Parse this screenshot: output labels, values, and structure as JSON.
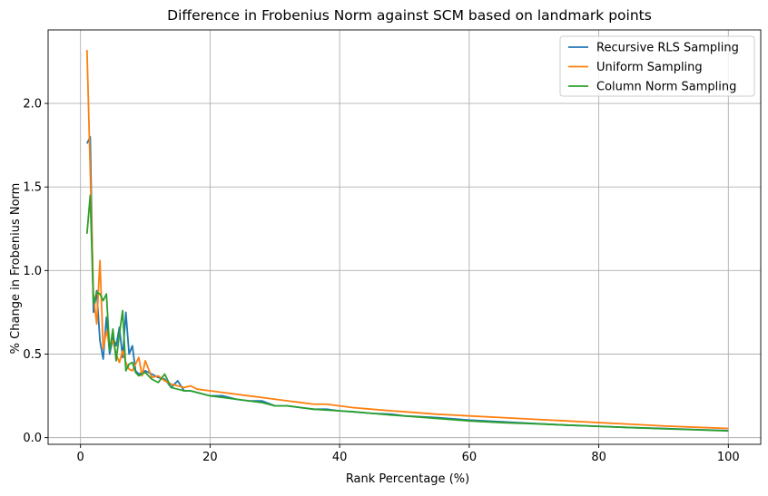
{
  "chart_data": {
    "type": "line",
    "title": "Difference in Frobenius Norm against SCM based on landmark points",
    "xlabel": "Rank Percentage (%)",
    "ylabel": "% Change in Frobenius Norm",
    "xlim": [
      -5,
      105
    ],
    "ylim": [
      -0.04,
      2.44
    ],
    "xticks": [
      0,
      20,
      40,
      60,
      80,
      100
    ],
    "yticks": [
      0.0,
      0.5,
      1.0,
      1.5,
      2.0
    ],
    "xtick_labels": [
      "0",
      "20",
      "40",
      "60",
      "80",
      "100"
    ],
    "ytick_labels": [
      "0.0",
      "0.5",
      "1.0",
      "1.5",
      "2.0"
    ],
    "grid": true,
    "legend_position": "top-right",
    "series": [
      {
        "name": "Recursive RLS Sampling",
        "color": "#1f77b4",
        "points": [
          [
            1,
            1.76
          ],
          [
            1.5,
            1.8
          ],
          [
            2,
            0.75
          ],
          [
            2.5,
            0.88
          ],
          [
            3,
            0.58
          ],
          [
            3.5,
            0.47
          ],
          [
            4,
            0.72
          ],
          [
            4.5,
            0.5
          ],
          [
            5,
            0.6
          ],
          [
            5.5,
            0.55
          ],
          [
            6,
            0.66
          ],
          [
            6.5,
            0.48
          ],
          [
            7,
            0.75
          ],
          [
            7.5,
            0.5
          ],
          [
            8,
            0.55
          ],
          [
            8.5,
            0.4
          ],
          [
            9,
            0.38
          ],
          [
            10,
            0.4
          ],
          [
            11,
            0.38
          ],
          [
            12,
            0.36
          ],
          [
            13,
            0.35
          ],
          [
            14,
            0.3
          ],
          [
            15,
            0.34
          ],
          [
            16,
            0.28
          ],
          [
            17,
            0.28
          ],
          [
            18,
            0.27
          ],
          [
            20,
            0.25
          ],
          [
            22,
            0.25
          ],
          [
            24,
            0.23
          ],
          [
            26,
            0.22
          ],
          [
            28,
            0.22
          ],
          [
            30,
            0.19
          ],
          [
            32,
            0.19
          ],
          [
            34,
            0.18
          ],
          [
            36,
            0.17
          ],
          [
            38,
            0.17
          ],
          [
            40,
            0.16
          ],
          [
            42,
            0.155
          ],
          [
            45,
            0.145
          ],
          [
            48,
            0.14
          ],
          [
            50,
            0.13
          ],
          [
            55,
            0.12
          ],
          [
            60,
            0.105
          ],
          [
            65,
            0.095
          ],
          [
            70,
            0.085
          ],
          [
            75,
            0.075
          ],
          [
            80,
            0.068
          ],
          [
            85,
            0.06
          ],
          [
            90,
            0.055
          ],
          [
            95,
            0.048
          ],
          [
            100,
            0.042
          ]
        ]
      },
      {
        "name": "Uniform Sampling",
        "color": "#ff7f0e",
        "points": [
          [
            1,
            2.32
          ],
          [
            1.5,
            1.6
          ],
          [
            2,
            0.85
          ],
          [
            2.5,
            0.68
          ],
          [
            3,
            1.06
          ],
          [
            3.5,
            0.53
          ],
          [
            4,
            0.64
          ],
          [
            4.5,
            0.55
          ],
          [
            5,
            0.58
          ],
          [
            5.5,
            0.5
          ],
          [
            6,
            0.45
          ],
          [
            6.5,
            0.52
          ],
          [
            7,
            0.45
          ],
          [
            7.5,
            0.41
          ],
          [
            8,
            0.4
          ],
          [
            9,
            0.48
          ],
          [
            9.5,
            0.37
          ],
          [
            10,
            0.46
          ],
          [
            11,
            0.36
          ],
          [
            12,
            0.37
          ],
          [
            13,
            0.34
          ],
          [
            14,
            0.32
          ],
          [
            15,
            0.31
          ],
          [
            16,
            0.3
          ],
          [
            17,
            0.31
          ],
          [
            18,
            0.29
          ],
          [
            20,
            0.28
          ],
          [
            22,
            0.27
          ],
          [
            24,
            0.26
          ],
          [
            26,
            0.25
          ],
          [
            28,
            0.24
          ],
          [
            30,
            0.23
          ],
          [
            32,
            0.22
          ],
          [
            34,
            0.21
          ],
          [
            36,
            0.2
          ],
          [
            38,
            0.2
          ],
          [
            40,
            0.19
          ],
          [
            42,
            0.18
          ],
          [
            45,
            0.17
          ],
          [
            48,
            0.16
          ],
          [
            50,
            0.155
          ],
          [
            55,
            0.14
          ],
          [
            60,
            0.13
          ],
          [
            65,
            0.12
          ],
          [
            70,
            0.11
          ],
          [
            75,
            0.1
          ],
          [
            80,
            0.09
          ],
          [
            85,
            0.08
          ],
          [
            90,
            0.07
          ],
          [
            95,
            0.062
          ],
          [
            100,
            0.055
          ]
        ]
      },
      {
        "name": "Column Norm Sampling",
        "color": "#2ca02c",
        "points": [
          [
            1,
            1.22
          ],
          [
            1.5,
            1.45
          ],
          [
            2,
            0.8
          ],
          [
            2.5,
            0.87
          ],
          [
            3,
            0.86
          ],
          [
            3.5,
            0.82
          ],
          [
            4,
            0.86
          ],
          [
            4.5,
            0.52
          ],
          [
            5,
            0.65
          ],
          [
            5.5,
            0.46
          ],
          [
            6,
            0.62
          ],
          [
            6.5,
            0.76
          ],
          [
            7,
            0.4
          ],
          [
            7.5,
            0.44
          ],
          [
            8,
            0.45
          ],
          [
            8.5,
            0.39
          ],
          [
            9,
            0.37
          ],
          [
            10,
            0.39
          ],
          [
            11,
            0.35
          ],
          [
            12,
            0.33
          ],
          [
            13,
            0.38
          ],
          [
            14,
            0.3
          ],
          [
            15,
            0.29
          ],
          [
            16,
            0.28
          ],
          [
            17,
            0.28
          ],
          [
            18,
            0.27
          ],
          [
            20,
            0.25
          ],
          [
            22,
            0.24
          ],
          [
            24,
            0.23
          ],
          [
            26,
            0.22
          ],
          [
            28,
            0.21
          ],
          [
            30,
            0.19
          ],
          [
            32,
            0.19
          ],
          [
            34,
            0.18
          ],
          [
            36,
            0.17
          ],
          [
            38,
            0.165
          ],
          [
            40,
            0.16
          ],
          [
            42,
            0.155
          ],
          [
            45,
            0.145
          ],
          [
            48,
            0.135
          ],
          [
            50,
            0.13
          ],
          [
            55,
            0.115
          ],
          [
            60,
            0.1
          ],
          [
            65,
            0.09
          ],
          [
            70,
            0.083
          ],
          [
            75,
            0.075
          ],
          [
            80,
            0.067
          ],
          [
            85,
            0.06
          ],
          [
            90,
            0.053
          ],
          [
            95,
            0.047
          ],
          [
            100,
            0.04
          ]
        ]
      }
    ]
  }
}
